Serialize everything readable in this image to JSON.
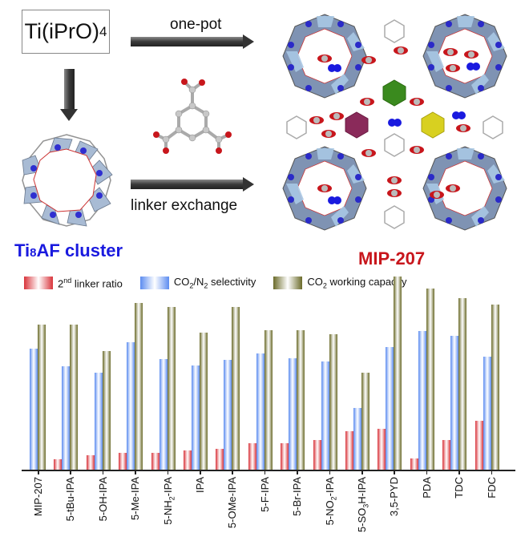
{
  "scheme": {
    "precursor": {
      "main": "Ti(iPrO)",
      "sub": "4"
    },
    "arrow_top_label": "one-pot",
    "arrow_bottom_label": "linker exchange",
    "cluster_label": {
      "pre": "Ti",
      "sub": "8",
      "post": "AF cluster"
    },
    "product_label": "MIP-207",
    "colors": {
      "cluster_label": "#1a1adf",
      "product_label": "#c8161c"
    }
  },
  "legend": [
    {
      "id": "red",
      "label_pre": "2",
      "label_sup": "nd",
      "label_post": " linker ratio",
      "color": "#d9343b"
    },
    {
      "id": "blue",
      "label_pre": "CO",
      "label_sub": "2",
      "label_mid": "/N",
      "label_sub2": "2",
      "label_post": " selectivity",
      "color": "#5c8cf0"
    },
    {
      "id": "olive",
      "label_pre": "CO",
      "label_sub": "2",
      "label_post": " working capacity",
      "color": "#6b6b2a"
    }
  ],
  "chart_data": {
    "type": "bar",
    "title": "",
    "xlabel": "",
    "ylabel": "",
    "y_axis_shown": false,
    "units": "relative (pixel height above baseline; no numeric y-axis shown)",
    "categories": [
      "MIP-207",
      "5-tBu-IPA",
      "5-OH-IPA",
      "5-Me-IPA",
      "5-NH2-IPA",
      "IPA",
      "5-OMe-IPA",
      "5-F-IPA",
      "5-Br-IPA",
      "5-NO2-IPA",
      "5-SO3H-IPA",
      "3,5-PYD",
      "PDA",
      "TDC",
      "FDC"
    ],
    "series": [
      {
        "name": "2nd linker ratio",
        "color": "#d9343b",
        "values": [
          0,
          13,
          18,
          21,
          21,
          24,
          26,
          33,
          33,
          37,
          48,
          51,
          14,
          37,
          61
        ]
      },
      {
        "name": "CO2/N2 selectivity",
        "color": "#5c8cf0",
        "values": [
          151,
          129,
          121,
          159,
          138,
          130,
          137,
          145,
          139,
          135,
          77,
          153,
          173,
          167,
          141
        ]
      },
      {
        "name": "CO2 working capacity",
        "color": "#6b6b2a",
        "values": [
          181,
          181,
          148,
          208,
          203,
          171,
          203,
          174,
          174,
          169,
          121,
          241,
          226,
          214,
          206
        ]
      }
    ],
    "legend_position": "top",
    "grid": false
  },
  "xlabels": [
    {
      "pre": "MIP-207"
    },
    {
      "pre": "5-tBu-IPA"
    },
    {
      "pre": "5-OH-IPA"
    },
    {
      "pre": "5-Me-IPA"
    },
    {
      "pre": "5-NH",
      "sub": "2",
      "post": "-IPA"
    },
    {
      "pre": "IPA"
    },
    {
      "pre": "5-OMe-IPA"
    },
    {
      "pre": "5-F-IPA"
    },
    {
      "pre": "5-Br-IPA"
    },
    {
      "pre": "5-NO",
      "sub": "2",
      "post": "-IPA"
    },
    {
      "pre": "5-SO",
      "sub": "3",
      "post": "H-IPA"
    },
    {
      "pre": "3,5-PYD"
    },
    {
      "pre": "PDA"
    },
    {
      "pre": "TDC"
    },
    {
      "pre": "FDC"
    }
  ]
}
